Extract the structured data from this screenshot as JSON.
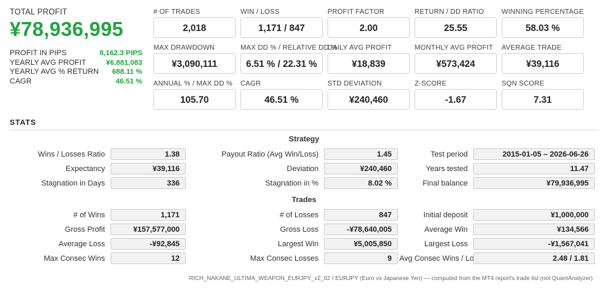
{
  "summary": {
    "total_profit_label": "TOTAL PROFIT",
    "total_profit_value": "¥78,936,995",
    "rows": [
      {
        "label": "PROFIT IN PIPS",
        "value": "8,162.3 PIPS"
      },
      {
        "label": "YEARLY AVG PROFIT",
        "value": "¥6,881,083"
      },
      {
        "label": "YEARLY AVG % RETURN",
        "value": "688.11 %"
      },
      {
        "label": "CAGR",
        "value": "46.51 %"
      }
    ]
  },
  "tiles": [
    {
      "label": "# OF TRADES",
      "value": "2,018"
    },
    {
      "label": "WIN / LOSS",
      "value": "1,171 / 847"
    },
    {
      "label": "PROFIT FACTOR",
      "value": "2.00"
    },
    {
      "label": "RETURN / DD RATIO",
      "value": "25.55"
    },
    {
      "label": "WINNING PERCENTAGE",
      "value": "58.03 %"
    },
    {
      "label": "MAX DRAWDOWN",
      "value": "¥3,090,111"
    },
    {
      "label": "MAX DD % / RELATIVE DD %",
      "value": "6.51 % / 22.31 %"
    },
    {
      "label": "DAILY AVG PROFIT",
      "value": "¥18,839"
    },
    {
      "label": "MONTHLY AVG PROFIT",
      "value": "¥573,424"
    },
    {
      "label": "AVERAGE TRADE",
      "value": "¥39,116"
    },
    {
      "label": "ANNUAL % / MAX DD %",
      "value": "105.70"
    },
    {
      "label": "CAGR",
      "value": "46.51 %"
    },
    {
      "label": "STD DEVIATION",
      "value": "¥240,460"
    },
    {
      "label": "Z-SCORE",
      "value": "-1.67"
    },
    {
      "label": "SQN SCORE",
      "value": "7.31"
    }
  ],
  "stats": {
    "title": "STATS",
    "strategy": {
      "title": "Strategy",
      "col1": [
        {
          "label": "Wins / Losses Ratio",
          "value": "1.38"
        },
        {
          "label": "Expectancy",
          "value": "¥39,116"
        },
        {
          "label": "Stagnation in Days",
          "value": "336"
        }
      ],
      "col2": [
        {
          "label": "Payout Ratio (Avg Win/Loss)",
          "value": "1.45"
        },
        {
          "label": "Deviation",
          "value": "¥240,460"
        },
        {
          "label": "Stagnation in %",
          "value": "8.02 %"
        }
      ],
      "col3": [
        {
          "label": "Test period",
          "value": "2015-01-05 – 2026-06-26"
        },
        {
          "label": "Years tested",
          "value": "11.47"
        },
        {
          "label": "Final balance",
          "value": "¥79,936,995"
        }
      ]
    },
    "trades": {
      "title": "Trades",
      "col1": [
        {
          "label": "# of Wins",
          "value": "1,171"
        },
        {
          "label": "Gross Profit",
          "value": "¥157,577,000"
        },
        {
          "label": "Average Loss",
          "value": "-¥92,845"
        },
        {
          "label": "Max Consec Wins",
          "value": "12"
        }
      ],
      "col2": [
        {
          "label": "# of Losses",
          "value": "847"
        },
        {
          "label": "Gross Loss",
          "value": "-¥78,640,005"
        },
        {
          "label": "Largest Win",
          "value": "¥5,005,850"
        },
        {
          "label": "Max Consec Losses",
          "value": "9"
        }
      ],
      "col3": [
        {
          "label": "Initial deposit",
          "value": "¥1,000,000"
        },
        {
          "label": "Average Win",
          "value": "¥134,566"
        },
        {
          "label": "Largest Loss",
          "value": "-¥1,567,041"
        },
        {
          "label": "Avg Consec Wins / Losses",
          "value": "2.48 / 1.81"
        }
      ]
    }
  },
  "footer": "RICH_NAKANE_ULTIMA_WEAPON_EURJPY_v2_02 / EURJPY (Euro vs Japanese Yen) — computed from the MT4 report's trade list (not QuantAnalyzer)",
  "colors": {
    "accent_green": "#21a340"
  }
}
